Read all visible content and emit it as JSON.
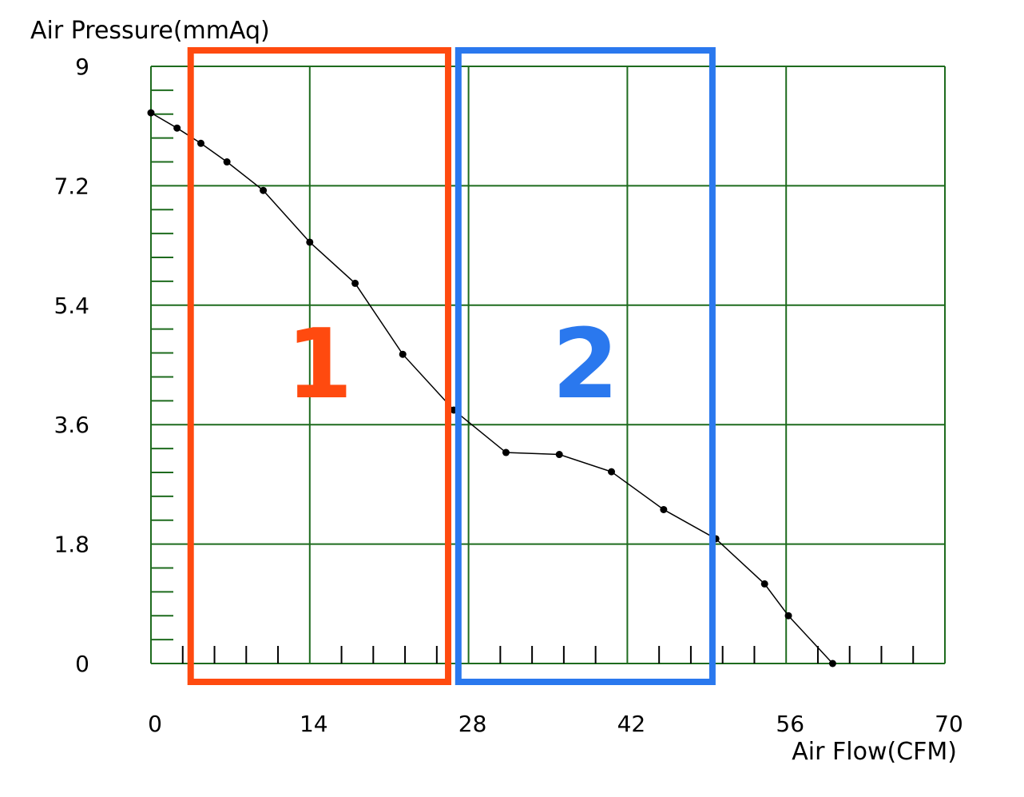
{
  "chart_data": {
    "type": "line",
    "ylabel": "Air Pressure(mmAq)",
    "xlabel": "Air Flow(CFM)",
    "xlim": [
      0,
      70
    ],
    "ylim": [
      0,
      9
    ],
    "x_ticks": [
      "0",
      "14",
      "28",
      "42",
      "56",
      "70"
    ],
    "y_ticks": [
      "9",
      "7.2",
      "5.4",
      "3.6",
      "1.8",
      "0"
    ],
    "x_tick_values": [
      0,
      14,
      28,
      42,
      56,
      70
    ],
    "y_tick_values": [
      9,
      7.2,
      5.4,
      3.6,
      1.8,
      0
    ],
    "grid": true,
    "series": [
      {
        "points": [
          {
            "x": 0,
            "y": 8.3
          },
          {
            "x": 2.3,
            "y": 8.07
          },
          {
            "x": 4.4,
            "y": 7.84
          },
          {
            "x": 6.7,
            "y": 7.56
          },
          {
            "x": 9.9,
            "y": 7.13
          },
          {
            "x": 14.0,
            "y": 6.35
          },
          {
            "x": 18.0,
            "y": 5.73
          },
          {
            "x": 22.2,
            "y": 4.66
          },
          {
            "x": 26.7,
            "y": 3.82
          },
          {
            "x": 31.3,
            "y": 3.18
          },
          {
            "x": 36.0,
            "y": 3.15
          },
          {
            "x": 40.6,
            "y": 2.89
          },
          {
            "x": 45.2,
            "y": 2.32
          },
          {
            "x": 49.8,
            "y": 1.88
          },
          {
            "x": 54.1,
            "y": 1.2
          },
          {
            "x": 56.2,
            "y": 0.72
          },
          {
            "x": 60.1,
            "y": 0.0
          }
        ]
      }
    ],
    "annotations": [
      {
        "label": "1",
        "x_range": [
          3.5,
          26.2
        ],
        "color": "#ff4a0f"
      },
      {
        "label": "2",
        "x_range": [
          27.1,
          49.5
        ],
        "color": "#2a78ee"
      }
    ],
    "colors": {
      "grid": "#1e6b1e",
      "line": "#000000"
    }
  }
}
